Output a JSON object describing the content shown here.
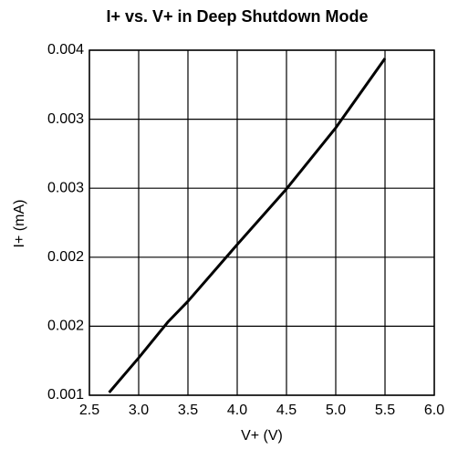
{
  "chart_data": {
    "type": "line",
    "title": "I+ vs. V+ in Deep Shutdown Mode",
    "x_label": "V+ (V)",
    "y_label": "I+ (mA)",
    "x": [
      2.7,
      3.0,
      3.3,
      3.5,
      4.0,
      4.5,
      5.0,
      5.5
    ],
    "series": [
      {
        "name": "I+",
        "color": "#000000",
        "values": [
          0.001024,
          0.001325,
          0.00164,
          0.001817,
          0.00231,
          0.002794,
          0.003325,
          0.003929
        ]
      }
    ],
    "xlim": [
      2.5,
      6.0
    ],
    "xticks": [
      2.5,
      {
        "value": 3,
        "label": "3.0"
      },
      3.5,
      {
        "value": 4,
        "label": "4.0"
      },
      4.5,
      {
        "value": 5,
        "label": "5.0"
      },
      5.5,
      {
        "value": 6,
        "label": "6.0"
      }
    ],
    "ylim": [
      0.001,
      0.004
    ],
    "yticks": [
      0.001,
      {
        "value": 0.0016,
        "label": "0.002"
      },
      {
        "value": 0.0022,
        "label": "0.002"
      },
      {
        "value": 0.0028,
        "label": "0.003"
      },
      {
        "value": 0.0034,
        "label": "0.003"
      },
      0.004
    ],
    "grid": true
  }
}
